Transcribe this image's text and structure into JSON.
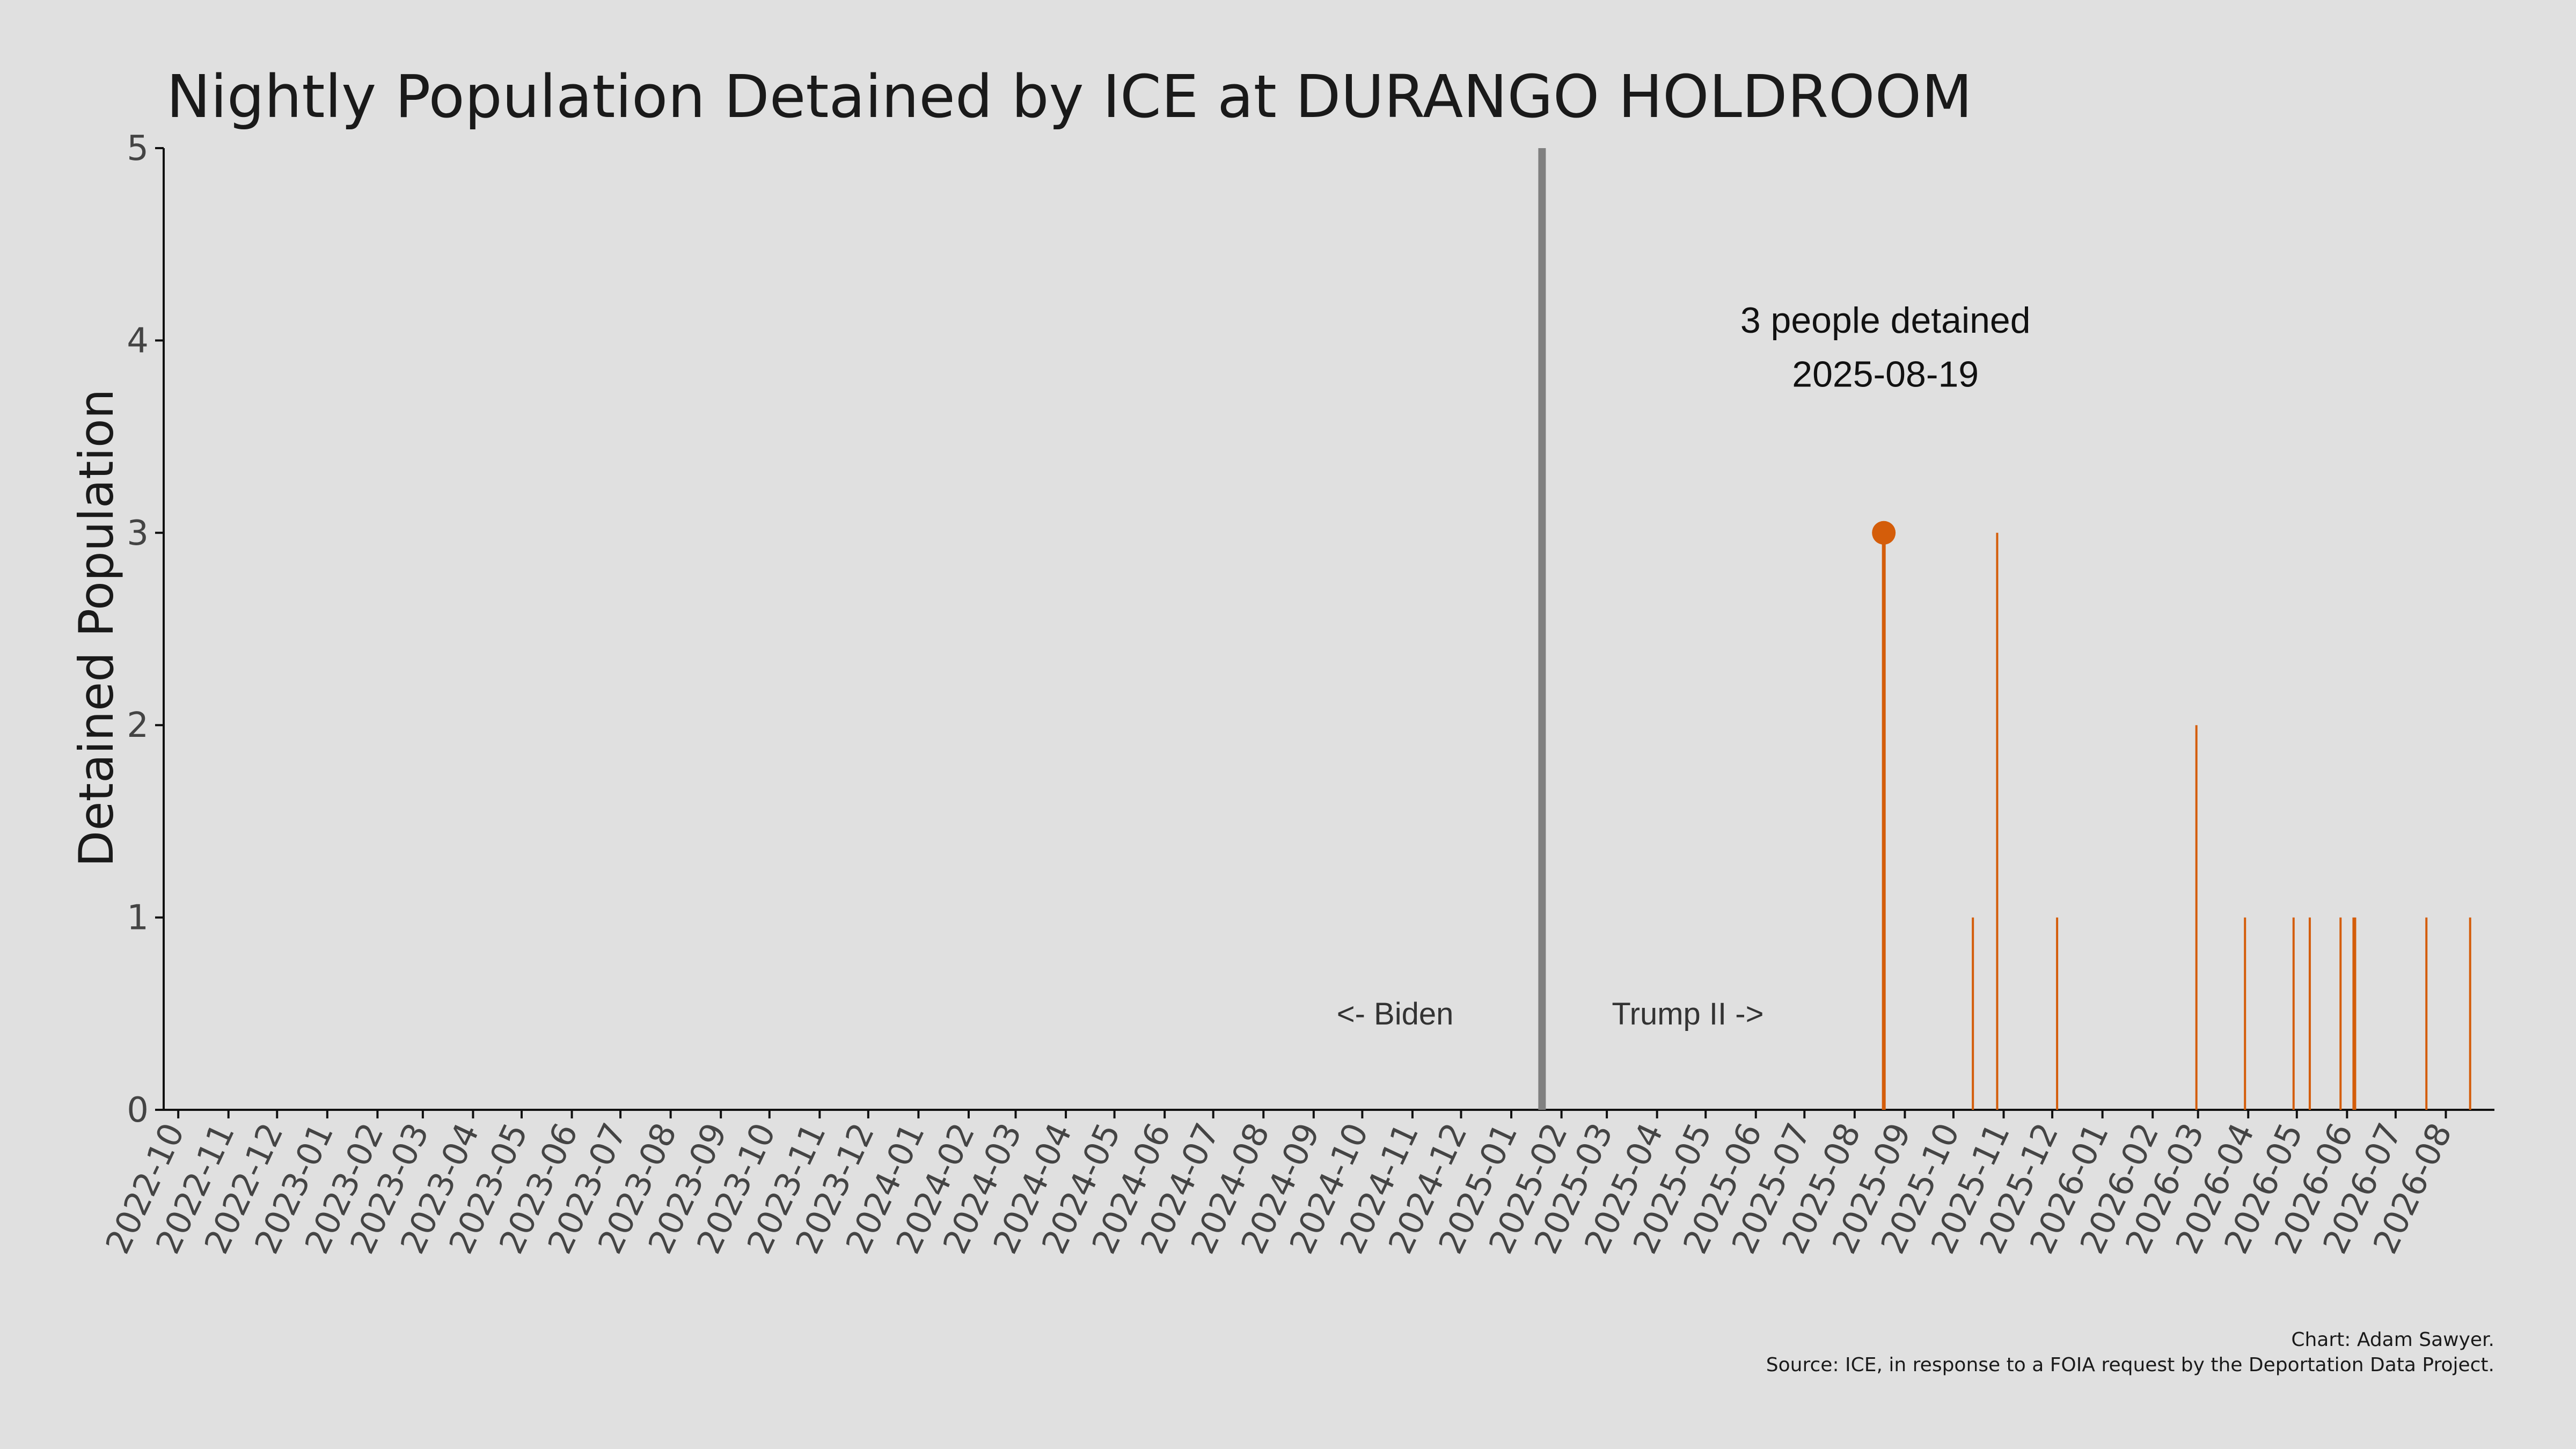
{
  "chart_data": {
    "type": "bar",
    "title": "Nightly Population Detained by ICE at DURANGO HOLDROOM",
    "xlabel": "",
    "ylabel": "Detained Population",
    "ylim": [
      0,
      5
    ],
    "yticks": [
      0,
      1,
      2,
      3,
      4,
      5
    ],
    "xlim": [
      "2022-09-22",
      "2026-08-31"
    ],
    "xticks": [
      "2022-10",
      "2022-11",
      "2022-12",
      "2023-01",
      "2023-02",
      "2023-03",
      "2023-04",
      "2023-05",
      "2023-06",
      "2023-07",
      "2023-08",
      "2023-09",
      "2023-10",
      "2023-11",
      "2023-12",
      "2024-01",
      "2024-02",
      "2024-03",
      "2024-04",
      "2024-05",
      "2024-06",
      "2024-07",
      "2024-08",
      "2024-09",
      "2024-10",
      "2024-11",
      "2024-12",
      "2025-01",
      "2025-02",
      "2025-03",
      "2025-04",
      "2025-05",
      "2025-06",
      "2025-07",
      "2025-08",
      "2025-09",
      "2025-10",
      "2025-11",
      "2025-12",
      "2026-01",
      "2026-02",
      "2026-03",
      "2026-04",
      "2026-05",
      "2026-06",
      "2026-07",
      "2026-08"
    ],
    "grid": false,
    "series": [
      {
        "color": "#d45d0a",
        "points": [
          {
            "x": "2025-08-19",
            "y": 3
          },
          {
            "x": "2025-10-13",
            "y": 1
          },
          {
            "x": "2025-10-28",
            "y": 3
          },
          {
            "x": "2025-12-04",
            "y": 1
          },
          {
            "x": "2026-02-28",
            "y": 2
          },
          {
            "x": "2026-03-30",
            "y": 1
          },
          {
            "x": "2026-04-29",
            "y": 1
          },
          {
            "x": "2026-05-09",
            "y": 1
          },
          {
            "x": "2026-05-28",
            "y": 1
          },
          {
            "x": "2026-06-05",
            "y": 1
          },
          {
            "x": "2026-06-06",
            "y": 1
          },
          {
            "x": "2026-07-20",
            "y": 1
          },
          {
            "x": "2026-08-16",
            "y": 1
          }
        ]
      }
    ],
    "highlight": {
      "x": "2025-08-19",
      "y": 3,
      "label_line1": "3 people detained",
      "label_line2": "2025-08-19",
      "color": "#d45d0a"
    },
    "divider": {
      "x": "2025-01-20",
      "left_label": "<- Biden",
      "right_label": "Trump II ->",
      "color": "#808080"
    },
    "credit_line1": "Chart: Adam Sawyer.",
    "credit_line2": "Source: ICE, in response to a FOIA request by the Deportation Data Project."
  }
}
